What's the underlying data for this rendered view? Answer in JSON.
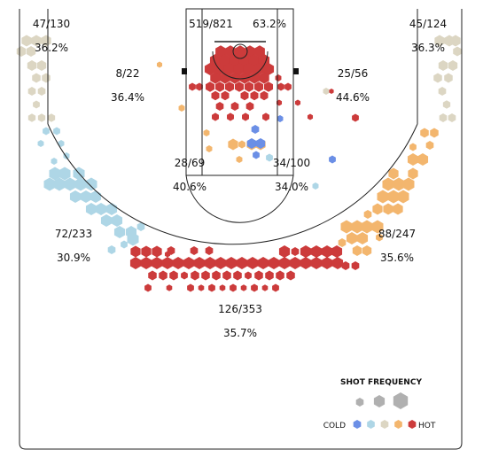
{
  "chart_data": {
    "type": "hexbin-shot-chart",
    "zones": [
      {
        "id": "left-corner-three",
        "made_attempts": "47/130",
        "pct": "36.2%"
      },
      {
        "id": "restricted-area",
        "made_attempts": "519/821",
        "pct": "63.2%"
      },
      {
        "id": "right-corner-three",
        "made_attempts": "45/124",
        "pct": "36.3%"
      },
      {
        "id": "left-midrange-baseline",
        "made_attempts": "8/22",
        "pct": "36.4%"
      },
      {
        "id": "right-midrange-baseline",
        "made_attempts": "25/56",
        "pct": "44.6%"
      },
      {
        "id": "left-paint",
        "made_attempts": "28/69",
        "pct": "40.6%"
      },
      {
        "id": "right-paint",
        "made_attempts": "34/100",
        "pct": "34.0%"
      },
      {
        "id": "left-wing-three",
        "made_attempts": "72/233",
        "pct": "30.9%"
      },
      {
        "id": "right-wing-three",
        "made_attempts": "88/247",
        "pct": "35.6%"
      },
      {
        "id": "top-three",
        "made_attempts": "126/353",
        "pct": "35.7%"
      }
    ],
    "legend": {
      "title": "SHOT FREQUENCY",
      "cold_label": "COLD",
      "hot_label": "HOT",
      "scale_colors": [
        "#6b8fe6",
        "#aed6e6",
        "#dcd6c3",
        "#f3b66e",
        "#cc3b3b"
      ]
    }
  }
}
